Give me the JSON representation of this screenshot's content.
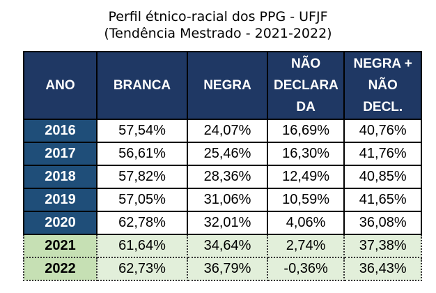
{
  "title": [
    "Perfil étnico-racial dos PPG - UFJF",
    "(Tendência Mestrado - 2021-2022)"
  ],
  "headers": [
    "ANO",
    "BRANCA",
    "NEGRA",
    "NÃO DECLARA DA",
    "NEGRA + NÃO DECL."
  ],
  "rows": [
    {
      "ano": "2016",
      "branca": "57,54%",
      "negra": "24,07%",
      "nd": "16,69%",
      "nnd": "40,76%"
    },
    {
      "ano": "2017",
      "branca": "56,61%",
      "negra": "25,46%",
      "nd": "16,30%",
      "nnd": "41,76%"
    },
    {
      "ano": "2018",
      "branca": "57,82%",
      "negra": "28,36%",
      "nd": "12,49%",
      "nnd": "40,85%"
    },
    {
      "ano": "2019",
      "branca": "57,05%",
      "negra": "31,06%",
      "nd": "10,59%",
      "nnd": "41,65%"
    },
    {
      "ano": "2020",
      "branca": "62,78%",
      "negra": "32,01%",
      "nd": "4,06%",
      "nnd": "36,08%"
    },
    {
      "ano": "2021",
      "branca": "61,64%",
      "negra": "34,64%",
      "nd": "2,74%",
      "nnd": "37,38%"
    },
    {
      "ano": "2022",
      "branca": "62,73%",
      "negra": "36,79%",
      "nd": "-0,36%",
      "nnd": "36,43%"
    }
  ]
}
